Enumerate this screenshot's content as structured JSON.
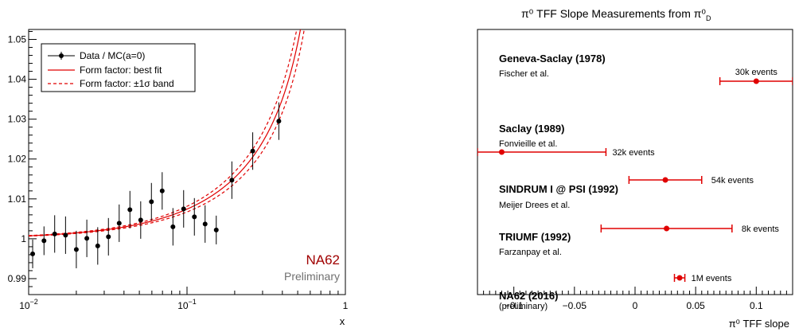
{
  "chart_data": [
    {
      "type": "scatter",
      "title": "",
      "xlabel": "x",
      "ylabel": "",
      "xscale": "log",
      "xlim": [
        0.01,
        1
      ],
      "ylim": [
        0.986,
        1.0525
      ],
      "x_tick_labels": [
        "10",
        "10",
        "1"
      ],
      "x_tick_exponents": [
        "-2",
        "-1",
        ""
      ],
      "y_ticks": [
        0.99,
        1,
        1.01,
        1.02,
        1.03,
        1.04,
        1.05
      ],
      "y_tick_labels": [
        "0.99",
        "1",
        "1.01",
        "1.02",
        "1.03",
        "1.04",
        "1.05"
      ],
      "grid": false,
      "legend_position": "top-left",
      "legend": [
        {
          "label": "Data / MC(a=0)",
          "style": "marker-errorbar"
        },
        {
          "label": "Form factor: best fit",
          "style": "solid"
        },
        {
          "label": "Form factor: ±1σ band",
          "style": "dashed"
        }
      ],
      "series": [
        {
          "name": "Data / MC(a=0)",
          "points": [
            {
              "x": 0.0106,
              "y": 0.9962,
              "err": 0.0036
            },
            {
              "x": 0.0125,
              "y": 0.9995,
              "err": 0.0036
            },
            {
              "x": 0.0146,
              "y": 1.0012,
              "err": 0.0047
            },
            {
              "x": 0.0171,
              "y": 1.0009,
              "err": 0.0047
            },
            {
              "x": 0.02,
              "y": 0.9973,
              "err": 0.0047
            },
            {
              "x": 0.0233,
              "y": 1.0001,
              "err": 0.0047
            },
            {
              "x": 0.0273,
              "y": 0.9982,
              "err": 0.0047
            },
            {
              "x": 0.0319,
              "y": 1.0005,
              "err": 0.0047
            },
            {
              "x": 0.0373,
              "y": 1.0039,
              "err": 0.0047
            },
            {
              "x": 0.0436,
              "y": 1.0073,
              "err": 0.0047
            },
            {
              "x": 0.051,
              "y": 1.0047,
              "err": 0.0047
            },
            {
              "x": 0.0596,
              "y": 1.0093,
              "err": 0.0047
            },
            {
              "x": 0.0697,
              "y": 1.012,
              "err": 0.0047
            },
            {
              "x": 0.0815,
              "y": 1.003,
              "err": 0.0047
            },
            {
              "x": 0.0952,
              "y": 1.0075,
              "err": 0.0047
            },
            {
              "x": 0.1113,
              "y": 1.0055,
              "err": 0.0047
            },
            {
              "x": 0.1301,
              "y": 1.0037,
              "err": 0.0047
            },
            {
              "x": 0.153,
              "y": 1.0022,
              "err": 0.0036
            },
            {
              "x": 0.192,
              "y": 1.0147,
              "err": 0.0047
            },
            {
              "x": 0.26,
              "y": 1.022,
              "err": 0.0047
            },
            {
              "x": 0.38,
              "y": 1.0295,
              "err": 0.0047
            }
          ]
        },
        {
          "name": "Form factor: best fit",
          "style": "solid",
          "color": "#e00000",
          "a": 0.0368
        },
        {
          "name": "Form factor: ±1σ band",
          "style": "dashed",
          "color": "#e00000",
          "a": [
            0.0333,
            0.0403
          ]
        }
      ],
      "annotations": [
        {
          "text": "NA62",
          "color": "#a00000"
        },
        {
          "text": "Preliminary",
          "color": "#707070"
        }
      ]
    },
    {
      "type": "scatter",
      "title": "π⁰ TFF Slope Measurements from π⁰",
      "title_subscript": "D",
      "xlabel": "π⁰ TFF slope",
      "ylabel": "",
      "xlim": [
        -0.13,
        0.13
      ],
      "x_ticks": [
        -0.1,
        -0.05,
        0,
        0.05,
        0.1
      ],
      "x_tick_labels": [
        "−0.1",
        "−0.05",
        "0",
        "0.05",
        "0.1"
      ],
      "grid": false,
      "measurements": [
        {
          "experiment": "Geneva-Saclay (1978)",
          "authors": "Fischer et al.",
          "value": 0.1,
          "low": 0.07,
          "high": 0.13,
          "events": "30k events"
        },
        {
          "experiment": "Saclay (1989)",
          "authors": "Fonvieille et al.",
          "value": -0.11,
          "low": -0.13,
          "high": -0.024,
          "events": "32k events"
        },
        {
          "experiment": "SINDRUM I @ PSI (1992)",
          "authors": "Meijer Drees et al.",
          "value": 0.025,
          "low": -0.005,
          "high": 0.055,
          "events": "54k events"
        },
        {
          "experiment": "TRIUMF (1992)",
          "authors": "Farzanpay et al.",
          "value": 0.026,
          "low": -0.028,
          "high": 0.08,
          "events": "8k events"
        },
        {
          "experiment": "NA62 (2016)",
          "authors": "(preliminary)",
          "value": 0.0368,
          "low": 0.0325,
          "high": 0.0411,
          "events": "1M events"
        }
      ],
      "marker_color": "#e00000"
    }
  ]
}
